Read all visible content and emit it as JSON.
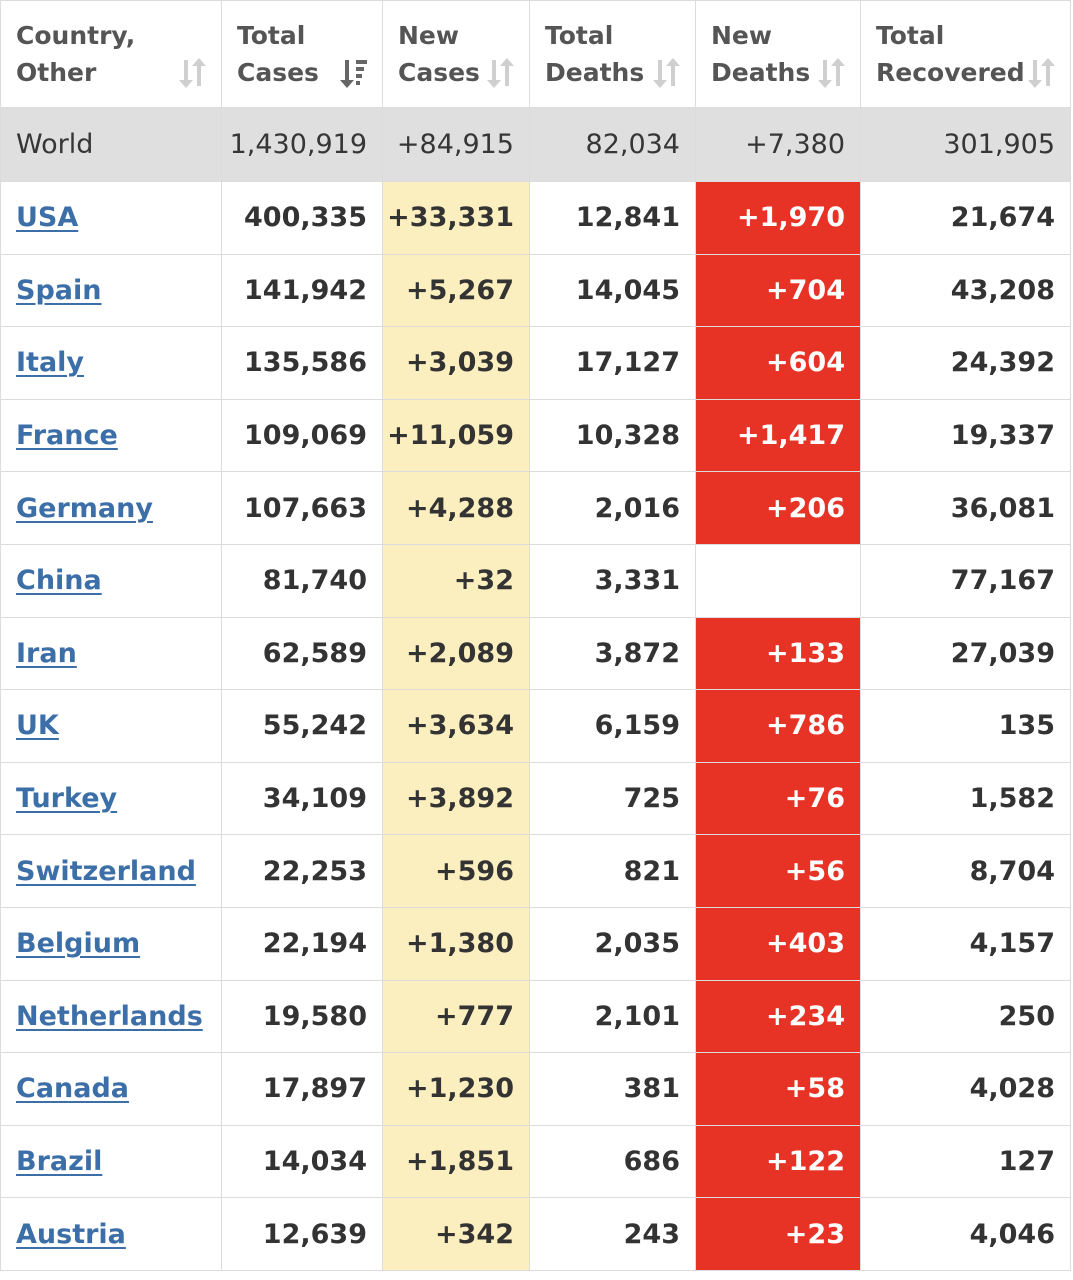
{
  "headers": [
    {
      "line1": "Country,",
      "line2": "Other",
      "icon": "sort-icon"
    },
    {
      "line1": "Total",
      "line2": "Cases",
      "icon": "sort-desc-icon"
    },
    {
      "line1": "New",
      "line2": "Cases",
      "icon": "sort-icon"
    },
    {
      "line1": "Total",
      "line2": "Deaths",
      "icon": "sort-icon"
    },
    {
      "line1": "New",
      "line2": "Deaths",
      "icon": "sort-icon"
    },
    {
      "line1": "Total",
      "line2": "Recovered",
      "icon": "sort-icon"
    }
  ],
  "world": {
    "country": "World",
    "total_cases": "1,430,919",
    "new_cases": "+84,915",
    "total_deaths": "82,034",
    "new_deaths": "+7,380",
    "total_recovered": "301,905"
  },
  "rows": [
    {
      "country": "USA",
      "total_cases": "400,335",
      "new_cases": "+33,331",
      "total_deaths": "12,841",
      "new_deaths": "+1,970",
      "total_recovered": "21,674"
    },
    {
      "country": "Spain",
      "total_cases": "141,942",
      "new_cases": "+5,267",
      "total_deaths": "14,045",
      "new_deaths": "+704",
      "total_recovered": "43,208"
    },
    {
      "country": "Italy",
      "total_cases": "135,586",
      "new_cases": "+3,039",
      "total_deaths": "17,127",
      "new_deaths": "+604",
      "total_recovered": "24,392"
    },
    {
      "country": "France",
      "total_cases": "109,069",
      "new_cases": "+11,059",
      "total_deaths": "10,328",
      "new_deaths": "+1,417",
      "total_recovered": "19,337"
    },
    {
      "country": "Germany",
      "total_cases": "107,663",
      "new_cases": "+4,288",
      "total_deaths": "2,016",
      "new_deaths": "+206",
      "total_recovered": "36,081"
    },
    {
      "country": "China",
      "total_cases": "81,740",
      "new_cases": "+32",
      "total_deaths": "3,331",
      "new_deaths": "",
      "total_recovered": "77,167"
    },
    {
      "country": "Iran",
      "total_cases": "62,589",
      "new_cases": "+2,089",
      "total_deaths": "3,872",
      "new_deaths": "+133",
      "total_recovered": "27,039"
    },
    {
      "country": "UK",
      "total_cases": "55,242",
      "new_cases": "+3,634",
      "total_deaths": "6,159",
      "new_deaths": "+786",
      "total_recovered": "135"
    },
    {
      "country": "Turkey",
      "total_cases": "34,109",
      "new_cases": "+3,892",
      "total_deaths": "725",
      "new_deaths": "+76",
      "total_recovered": "1,582"
    },
    {
      "country": "Switzerland",
      "total_cases": "22,253",
      "new_cases": "+596",
      "total_deaths": "821",
      "new_deaths": "+56",
      "total_recovered": "8,704"
    },
    {
      "country": "Belgium",
      "total_cases": "22,194",
      "new_cases": "+1,380",
      "total_deaths": "2,035",
      "new_deaths": "+403",
      "total_recovered": "4,157"
    },
    {
      "country": "Netherlands",
      "total_cases": "19,580",
      "new_cases": "+777",
      "total_deaths": "2,101",
      "new_deaths": "+234",
      "total_recovered": "250"
    },
    {
      "country": "Canada",
      "total_cases": "17,897",
      "new_cases": "+1,230",
      "total_deaths": "381",
      "new_deaths": "+58",
      "total_recovered": "4,028"
    },
    {
      "country": "Brazil",
      "total_cases": "14,034",
      "new_cases": "+1,851",
      "total_deaths": "686",
      "new_deaths": "+122",
      "total_recovered": "127"
    },
    {
      "country": "Austria",
      "total_cases": "12,639",
      "new_cases": "+342",
      "total_deaths": "243",
      "new_deaths": "+23",
      "total_recovered": "4,046"
    }
  ],
  "colors": {
    "new_cases_bg": "#fbeebf",
    "new_deaths_bg": "#e73325",
    "world_bg": "#dfdfdf",
    "link": "#3c6fa8"
  }
}
